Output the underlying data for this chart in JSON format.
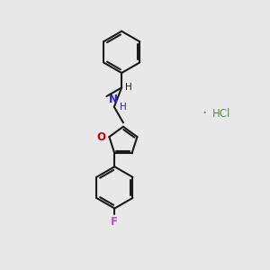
{
  "background_color": "#e8e8e8",
  "bond_color": "#1a1a1a",
  "n_color": "#2222cc",
  "o_color": "#cc0000",
  "f_color": "#cc44cc",
  "hcl_cl_color": "#33aa33",
  "hcl_h_color": "#33aa33",
  "line_width": 1.5,
  "figsize": [
    3.0,
    3.0
  ],
  "dpi": 100,
  "xlim": [
    0,
    10
  ],
  "ylim": [
    0,
    10
  ]
}
